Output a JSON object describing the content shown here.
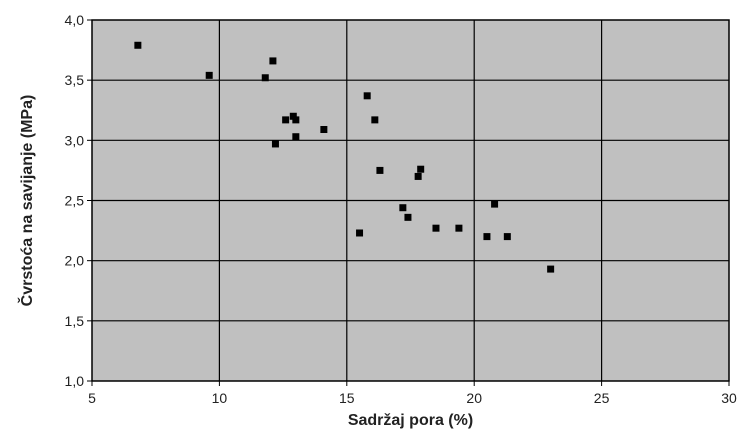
{
  "chart_data": {
    "type": "scatter",
    "xlabel": "Sadržaj pora (%)",
    "ylabel": "Čvrstoća na savijanje (MPa)",
    "xlim": [
      5,
      30
    ],
    "ylim": [
      1.0,
      4.0
    ],
    "x_ticks": [
      "5",
      "10",
      "15",
      "20",
      "25",
      "30"
    ],
    "y_ticks": [
      "1,0",
      "1,5",
      "2,0",
      "2,5",
      "3,0",
      "3,5",
      "4,0"
    ],
    "grid": true,
    "legend": "none",
    "colors": {
      "plot_background": "#c0c0c0",
      "grid": "#000000",
      "marker": "#000000"
    },
    "points": [
      {
        "x": 6.8,
        "y": 3.79
      },
      {
        "x": 9.6,
        "y": 3.54
      },
      {
        "x": 11.8,
        "y": 3.52
      },
      {
        "x": 12.1,
        "y": 3.66
      },
      {
        "x": 12.2,
        "y": 2.97
      },
      {
        "x": 12.6,
        "y": 3.17
      },
      {
        "x": 12.9,
        "y": 3.2
      },
      {
        "x": 13.0,
        "y": 3.17
      },
      {
        "x": 13.0,
        "y": 3.03
      },
      {
        "x": 14.1,
        "y": 3.09
      },
      {
        "x": 15.5,
        "y": 2.23
      },
      {
        "x": 15.8,
        "y": 3.37
      },
      {
        "x": 16.1,
        "y": 3.17
      },
      {
        "x": 16.3,
        "y": 2.75
      },
      {
        "x": 17.2,
        "y": 2.44
      },
      {
        "x": 17.4,
        "y": 2.36
      },
      {
        "x": 17.8,
        "y": 2.7
      },
      {
        "x": 17.9,
        "y": 2.76
      },
      {
        "x": 18.5,
        "y": 2.27
      },
      {
        "x": 19.4,
        "y": 2.27
      },
      {
        "x": 20.5,
        "y": 2.2
      },
      {
        "x": 20.8,
        "y": 2.47
      },
      {
        "x": 21.3,
        "y": 2.2
      },
      {
        "x": 23.0,
        "y": 1.93
      }
    ]
  }
}
